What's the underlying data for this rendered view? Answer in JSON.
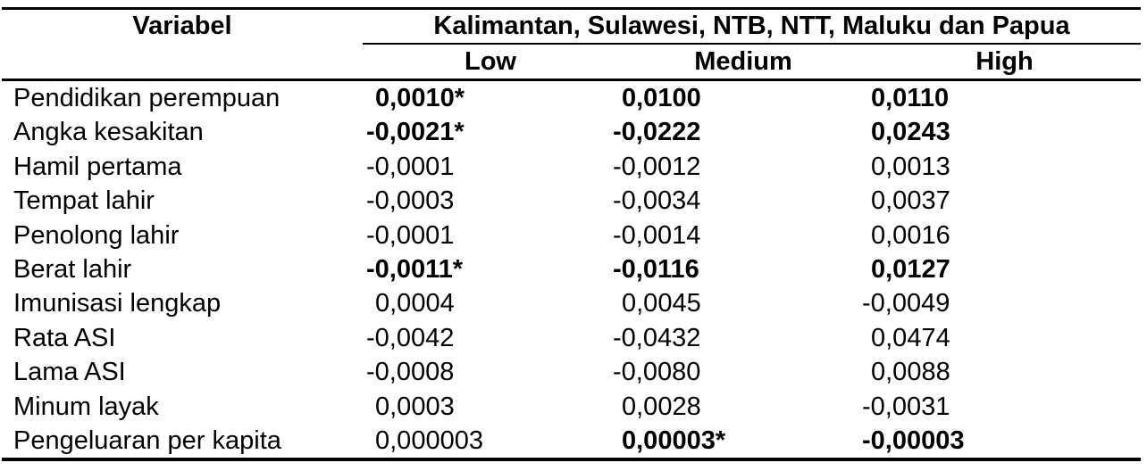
{
  "colors": {
    "text": "#000000",
    "background": "#ffffff",
    "rule": "#000000"
  },
  "table": {
    "variabel_header": "Variabel",
    "group_header": "Kalimantan, Sulawesi, NTB, NTT, Maluku dan Papua",
    "sub_headers": {
      "low": "Low",
      "medium": "Medium",
      "high": "High"
    },
    "rows": [
      {
        "variable": "Pendidikan perempuan",
        "low": "0,0010*",
        "medium": "0,0100",
        "high": "0,0110"
      },
      {
        "variable": "Angka kesakitan",
        "low": "-0,0021*",
        "medium": "-0,0222",
        "high": "0,0243"
      },
      {
        "variable": "Hamil pertama",
        "low": "-0,0001",
        "medium": "-0,0012",
        "high": "0,0013"
      },
      {
        "variable": "Tempat lahir",
        "low": "-0,0003",
        "medium": "-0,0034",
        "high": "0,0037"
      },
      {
        "variable": "Penolong lahir",
        "low": "-0,0001",
        "medium": "-0,0014",
        "high": "0,0016"
      },
      {
        "variable": "Berat lahir",
        "low": "-0,0011*",
        "medium": "-0,0116",
        "high": "0,0127"
      },
      {
        "variable": "Imunisasi lengkap",
        "low": "0,0004",
        "medium": "0,0045",
        "high": "-0,0049"
      },
      {
        "variable": "Rata ASI",
        "low": "-0,0042",
        "medium": "-0,0432",
        "high": "0,0474"
      },
      {
        "variable": "Lama ASI",
        "low": "-0,0008",
        "medium": "-0,0080",
        "high": "0,0088"
      },
      {
        "variable": "Minum layak",
        "low": "0,0003",
        "medium": "0,0028",
        "high": "-0,0031"
      },
      {
        "variable": "Pengeluaran per kapita",
        "low": "0,000003",
        "medium": "0,00003*",
        "high": "-0,00003"
      }
    ]
  }
}
